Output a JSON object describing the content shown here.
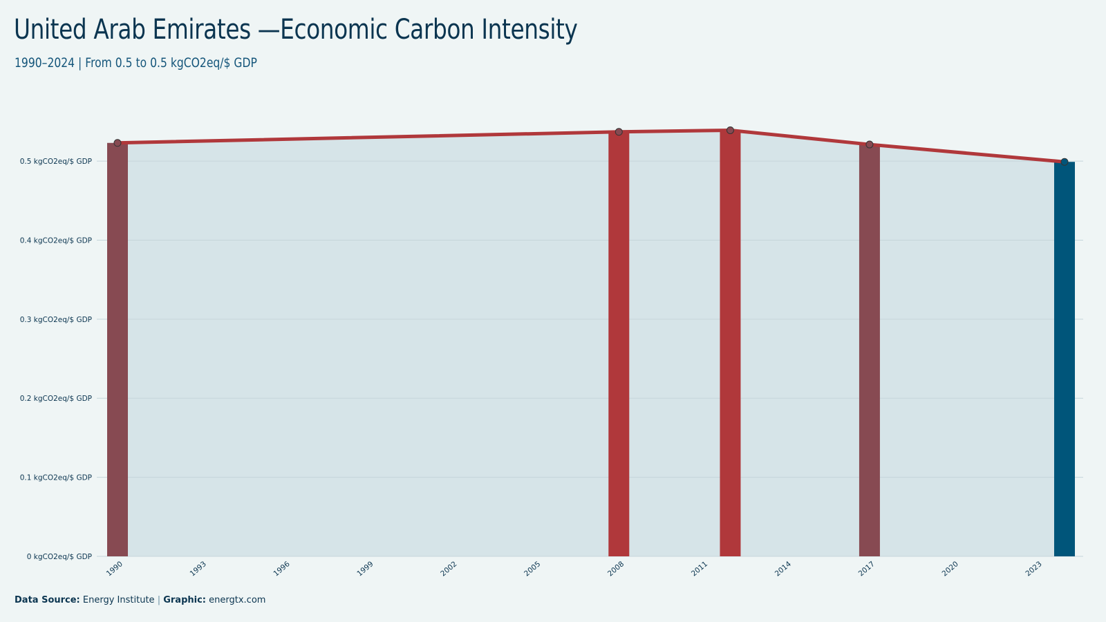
{
  "header": {
    "title": "United Arab Emirates —Economic Carbon Intensity",
    "subtitle": "1990–2024 | From 0.5 to 0.5 kgCO2eq/$ GDP"
  },
  "footer": {
    "source_label": "Data Source:",
    "source_value": "Energy Institute",
    "separator": "|",
    "graphic_label": "Graphic:",
    "graphic_value": "energtx.com"
  },
  "colors": {
    "line": "#b0383b",
    "area": "#d6e4e8",
    "bar_high": "#b0383b",
    "bar_mid": "#874a52",
    "bar_latest": "#00557a",
    "grid": "#c5d5da",
    "axis_text": "#0b3550"
  },
  "chart_data": {
    "type": "area",
    "title": "United Arab Emirates —Economic Carbon Intensity",
    "subtitle": "1990–2024 | From 0.5 to 0.5 kgCO2eq/$ GDP",
    "xlabel": "",
    "ylabel": "",
    "y_unit": "kgCO2eq/$ GDP",
    "ylim": [
      0,
      0.5
    ],
    "y_ticks": [
      0,
      0.1,
      0.2,
      0.3,
      0.4,
      0.5
    ],
    "y_tick_labels": [
      "0 kgCO2eq/$ GDP",
      "0.1 kgCO2eq/$ GDP",
      "0.2 kgCO2eq/$ GDP",
      "0.3 kgCO2eq/$ GDP",
      "0.4 kgCO2eq/$ GDP",
      "0.5 kgCO2eq/$ GDP"
    ],
    "x_ticks": [
      1990,
      1993,
      1996,
      1999,
      2002,
      2005,
      2008,
      2011,
      2014,
      2017,
      2020,
      2023
    ],
    "xlim": [
      1990,
      2024
    ],
    "grid": true,
    "series": [
      {
        "x": [
          1990,
          2008,
          2012,
          2017,
          2024
        ],
        "y": [
          0.523,
          0.537,
          0.539,
          0.521,
          0.499
        ]
      }
    ],
    "highlighted_bars": [
      {
        "x": 1990,
        "value": 0.523,
        "color_key": "bar_mid"
      },
      {
        "x": 2008,
        "value": 0.537,
        "color_key": "bar_high"
      },
      {
        "x": 2012,
        "value": 0.539,
        "color_key": "bar_high"
      },
      {
        "x": 2017,
        "value": 0.521,
        "color_key": "bar_mid"
      },
      {
        "x": 2024,
        "value": 0.499,
        "color_key": "bar_latest"
      }
    ]
  }
}
